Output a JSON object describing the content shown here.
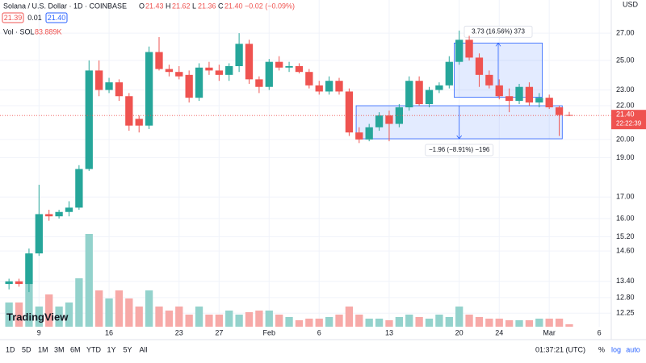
{
  "chart_data": {
    "type": "candlestick",
    "title": "Solana / U.S. Dollar · 1D · COINBASE",
    "ohlc_legend": {
      "o_label": "O",
      "o": "21.43",
      "h_label": "H",
      "h": "21.62",
      "l_label": "L",
      "l": "21.36",
      "c_label": "C",
      "c": "21.40",
      "change": "−0.02 (−0.09%)"
    },
    "quote": {
      "bid": "21.39",
      "spread": "0.01",
      "ask": "21.40"
    },
    "volume_legend": {
      "name": "Vol · SOL",
      "value": "83.889K"
    },
    "currency": "USD",
    "price_tag": {
      "price": "21.40",
      "countdown": "22:22:39"
    },
    "up_color": "#26a69a",
    "down_color": "#ef5350",
    "up_volume_color": "#93d2cc",
    "down_volume_color": "#f7a9a7",
    "log_scale": true,
    "ylim": [
      11.79,
      29.65
    ],
    "yticks": [
      {
        "value": 27,
        "label": "27.00"
      },
      {
        "value": 25,
        "label": "25.00"
      },
      {
        "value": 23,
        "label": "23.00"
      },
      {
        "value": 22,
        "label": "22.00"
      },
      {
        "value": 20,
        "label": "20.00"
      },
      {
        "value": 19,
        "label": "19.00"
      },
      {
        "value": 17,
        "label": "17.00"
      },
      {
        "value": 16,
        "label": "16.00"
      },
      {
        "value": 15.2,
        "label": "15.20"
      },
      {
        "value": 14.6,
        "label": "14.60"
      },
      {
        "value": 13.4,
        "label": "13.40"
      },
      {
        "value": 12.8,
        "label": "12.80"
      },
      {
        "value": 12.25,
        "label": "12.25"
      }
    ],
    "xlim": [
      -0.9,
      60.2
    ],
    "xticks": [
      {
        "value": 3,
        "label": "9"
      },
      {
        "value": 10,
        "label": "16"
      },
      {
        "value": 17,
        "label": "23"
      },
      {
        "value": 21,
        "label": "27"
      },
      {
        "value": 26,
        "label": "Feb"
      },
      {
        "value": 31,
        "label": "6"
      },
      {
        "value": 38,
        "label": "13"
      },
      {
        "value": 45,
        "label": "20"
      },
      {
        "value": 49,
        "label": "24"
      },
      {
        "value": 54,
        "label": "Mar"
      },
      {
        "value": 59,
        "label": "6"
      }
    ],
    "open": [
      13.3,
      13.4,
      13.3,
      14.5,
      16.2,
      16.1,
      16.3,
      16.5,
      18.4,
      24.3,
      23.0,
      23.5,
      22.6,
      21.2,
      20.8,
      25.6,
      24.4,
      24.2,
      24.0,
      22.5,
      24.5,
      24.3,
      24.0,
      24.6,
      26.2,
      23.7,
      23.2,
      24.9,
      24.5,
      24.6,
      24.2,
      23.3,
      22.9,
      23.6,
      22.9,
      20.4,
      20.0,
      20.7,
      21.4,
      20.9,
      21.9,
      23.6,
      22.1,
      23.0,
      23.3,
      24.9,
      26.5,
      25.2,
      24.0,
      23.3,
      22.6,
      22.3,
      23.2,
      22.2,
      22.5,
      21.9,
      21.43
    ],
    "high": [
      13.5,
      13.5,
      14.7,
      17.6,
      16.4,
      16.4,
      16.8,
      18.6,
      25.0,
      25.0,
      23.8,
      23.7,
      22.8,
      21.4,
      26.0,
      26.7,
      24.7,
      24.6,
      24.3,
      24.8,
      24.9,
      24.7,
      24.8,
      27.0,
      26.5,
      23.9,
      25.1,
      25.3,
      24.9,
      24.8,
      24.4,
      23.6,
      23.9,
      23.8,
      23.1,
      20.7,
      20.9,
      21.6,
      21.7,
      22.1,
      23.9,
      23.9,
      23.2,
      23.5,
      25.3,
      27.2,
      26.8,
      25.5,
      24.3,
      23.7,
      23.1,
      23.4,
      23.5,
      22.8,
      22.7,
      22.0,
      21.62
    ],
    "low": [
      13.1,
      13.2,
      13.0,
      14.4,
      15.9,
      16.0,
      16.1,
      16.4,
      18.3,
      22.6,
      22.8,
      22.3,
      20.5,
      20.4,
      20.6,
      24.3,
      23.9,
      23.7,
      22.2,
      22.3,
      24.0,
      23.6,
      23.6,
      24.2,
      23.4,
      22.8,
      23.0,
      24.3,
      24.2,
      24.1,
      23.1,
      22.7,
      22.7,
      22.7,
      20.2,
      19.8,
      19.9,
      20.5,
      19.9,
      20.7,
      21.7,
      22.0,
      21.9,
      22.8,
      23.1,
      24.7,
      25.0,
      23.2,
      23.1,
      22.4,
      21.6,
      22.1,
      22.0,
      21.9,
      21.8,
      20.2,
      21.36
    ],
    "close": [
      13.4,
      13.3,
      14.5,
      16.2,
      16.1,
      16.3,
      16.5,
      18.4,
      24.3,
      23.0,
      23.5,
      22.6,
      20.8,
      20.8,
      25.6,
      24.4,
      24.2,
      23.9,
      22.5,
      24.5,
      24.3,
      24.0,
      24.6,
      26.2,
      23.7,
      23.2,
      24.9,
      24.5,
      24.6,
      24.2,
      23.3,
      22.9,
      23.6,
      22.9,
      20.4,
      20.0,
      20.7,
      21.4,
      20.9,
      21.9,
      23.6,
      22.1,
      23.0,
      23.3,
      24.9,
      26.5,
      25.2,
      24.0,
      23.3,
      22.6,
      22.3,
      23.2,
      22.2,
      22.5,
      21.9,
      21.43,
      21.4
    ],
    "volume": [
      840,
      840,
      2520,
      700,
      1120,
      700,
      840,
      1680,
      3220,
      1260,
      980,
      1260,
      980,
      700,
      1260,
      700,
      560,
      700,
      420,
      700,
      420,
      420,
      560,
      420,
      504,
      560,
      560,
      420,
      336,
      224,
      280,
      280,
      336,
      420,
      700,
      420,
      280,
      280,
      224,
      336,
      420,
      336,
      280,
      420,
      336,
      700,
      420,
      336,
      280,
      280,
      224,
      224,
      224,
      280,
      280,
      280,
      83.889
    ],
    "volume_lim": [
      0,
      3500
    ],
    "measures": [
      {
        "label": "3.73 (16.56%) 373",
        "x0": 44.5,
        "x1": 53.3,
        "y0": 22.53,
        "y1": 26.26
      },
      {
        "label": "−1.96 (−8.91%) −196",
        "x0": 34.7,
        "x1": 55.3,
        "y0": 22.0,
        "y1": 20.04
      }
    ],
    "watermark": "TradingView"
  },
  "toolbar": {
    "ranges": [
      "1D",
      "5D",
      "1M",
      "3M",
      "6M",
      "YTD",
      "1Y",
      "5Y",
      "All"
    ],
    "clock": "01:37:21 (UTC)",
    "percent": "%",
    "log": "log",
    "auto": "auto"
  }
}
